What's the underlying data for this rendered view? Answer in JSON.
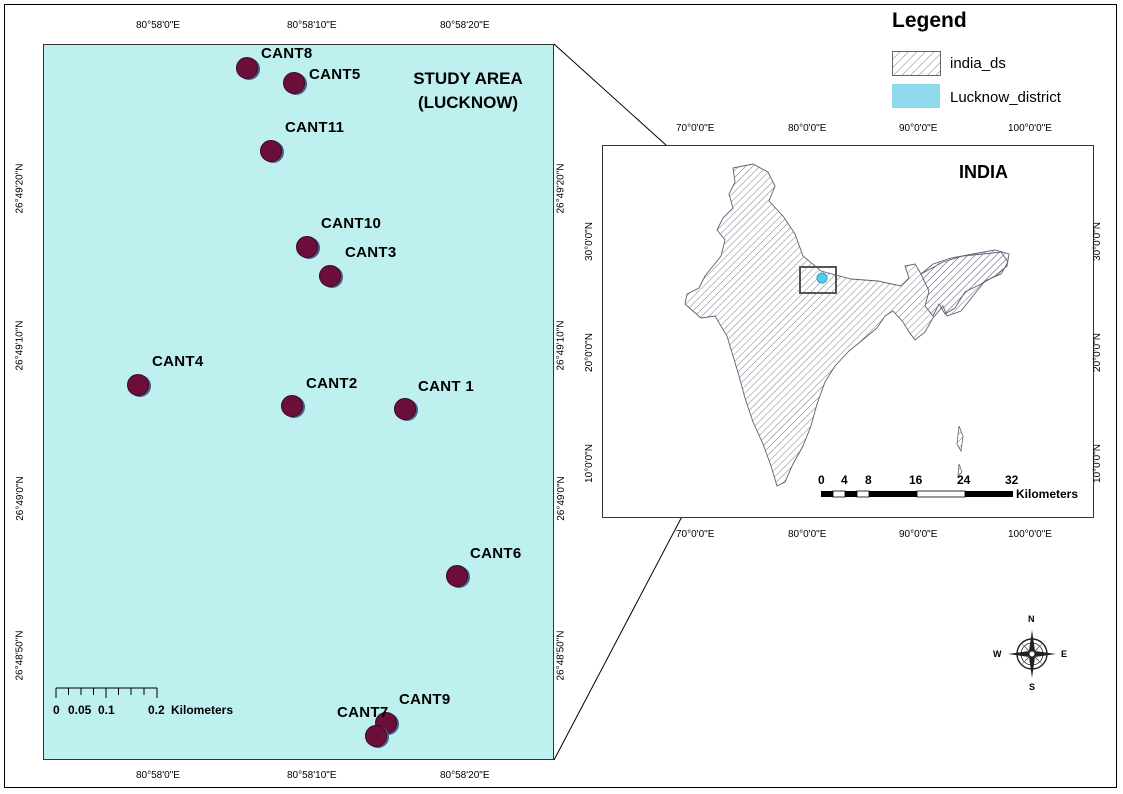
{
  "study": {
    "title_line1": "STUDY AREA",
    "title_line2": "(LUCKNOW)",
    "top_ticks": [
      "80°58'0\"E",
      "80°58'10\"E",
      "80°58'20\"E"
    ],
    "bottom_ticks": [
      "80°58'0\"E",
      "80°58'10\"E",
      "80°58'20\"E"
    ],
    "left_ticks": [
      "26°49'20\"N",
      "26°49'10\"N",
      "26°49'0\"N",
      "26°48'50\"N"
    ],
    "right_ticks": [
      "26°49'20\"N",
      "26°49'10\"N",
      "26°49'0\"N",
      "26°48'50\"N"
    ],
    "scale_ticks": [
      "0",
      "0.05",
      "0.1",
      "0.2"
    ],
    "scale_unit": "Kilometers",
    "fill_color": "#bdf0ee",
    "point_color": "#6b0f3a",
    "sites": [
      {
        "label": "CANT8"
      },
      {
        "label": "CANT5"
      },
      {
        "label": "CANT11"
      },
      {
        "label": "CANT10"
      },
      {
        "label": "CANT3"
      },
      {
        "label": "CANT4"
      },
      {
        "label": "CANT2"
      },
      {
        "label": "CANT 1"
      },
      {
        "label": "CANT6"
      },
      {
        "label": "CANT9"
      },
      {
        "label": "CANT7"
      }
    ]
  },
  "india": {
    "title": "INDIA",
    "top_ticks": [
      "70°0'0\"E",
      "80°0'0\"E",
      "90°0'0\"E",
      "100°0'0\"E"
    ],
    "bottom_ticks": [
      "70°0'0\"E",
      "80°0'0\"E",
      "90°0'0\"E",
      "100°0'0\"E"
    ],
    "left_ticks": [
      "30°0'0\"N",
      "20°0'0\"N",
      "10°0'0\"N"
    ],
    "right_ticks": [
      "30°0'0\"N",
      "20°0'0\"N",
      "10°0'0\"N"
    ],
    "scale_ticks": [
      "0",
      "4",
      "8",
      "16",
      "24",
      "32"
    ],
    "scale_unit": "Kilometers"
  },
  "legend": {
    "title": "Legend",
    "items": [
      {
        "label": "india_ds",
        "swatch": "hatch"
      },
      {
        "label": "Lucknow_district",
        "swatch": "#8fd9ee"
      }
    ]
  },
  "north_arrow": {
    "n": "N",
    "s": "S",
    "e": "E",
    "w": "W"
  }
}
